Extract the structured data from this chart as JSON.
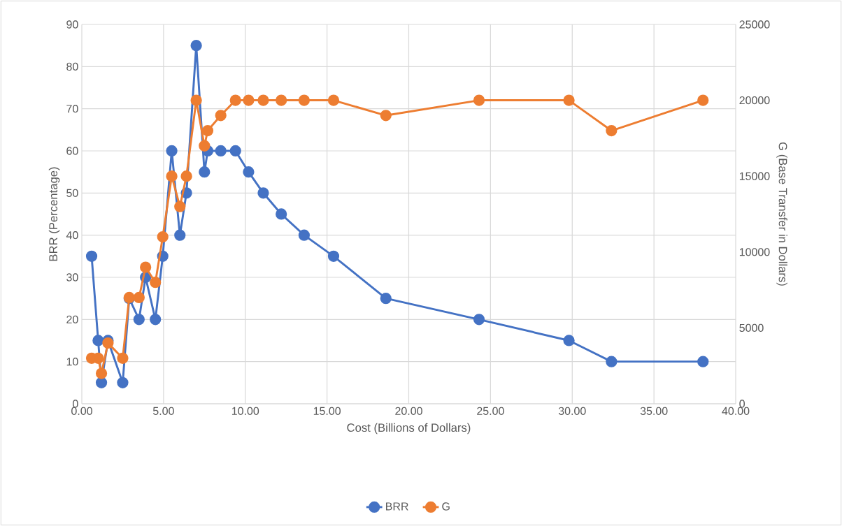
{
  "chart_data": {
    "type": "line",
    "xlabel": "Cost (Billions of Dollars)",
    "ylabel": "BRR (Percentage)",
    "y2label": "G (Base Transfer in Dollars)",
    "x": [
      0.6,
      1.0,
      1.2,
      1.6,
      2.5,
      2.9,
      3.5,
      3.9,
      4.5,
      4.95,
      5.5,
      6.0,
      6.4,
      7.0,
      7.5,
      7.7,
      8.5,
      9.4,
      10.2,
      11.1,
      12.2,
      13.6,
      15.4,
      18.6,
      24.3,
      29.8,
      32.4,
      38.0
    ],
    "series": [
      {
        "name": "BRR",
        "color": "#4472c4",
        "values": [
          35,
          15,
          5,
          15,
          5,
          25,
          20,
          30,
          20,
          35,
          60,
          40,
          50,
          85,
          55,
          60,
          60,
          60,
          55,
          50,
          45,
          40,
          35,
          25,
          20,
          15,
          10,
          10
        ]
      },
      {
        "name": "G",
        "color": "#ed7d31",
        "axis": "y2",
        "values": [
          3000,
          3000,
          2000,
          4000,
          3000,
          7000,
          7000,
          9000,
          8000,
          11000,
          15000,
          13000,
          15000,
          20000,
          17000,
          18000,
          19000,
          20000,
          20000,
          20000,
          20000,
          20000,
          20000,
          19000,
          20000,
          20000,
          18000,
          20000
        ]
      }
    ],
    "xlim": [
      0,
      40
    ],
    "xticks": [
      {
        "value": 0,
        "label": "0.00"
      },
      {
        "value": 5,
        "label": "5.00"
      },
      {
        "value": 10,
        "label": "10.00"
      },
      {
        "value": 15,
        "label": "15.00"
      },
      {
        "value": 20,
        "label": "20.00"
      },
      {
        "value": 25,
        "label": "25.00"
      },
      {
        "value": 30,
        "label": "30.00"
      },
      {
        "value": 35,
        "label": "35.00"
      },
      {
        "value": 40,
        "label": "40.00"
      }
    ],
    "ylim": [
      0,
      90
    ],
    "yticks": [
      0,
      10,
      20,
      30,
      40,
      50,
      60,
      70,
      80,
      90
    ],
    "y2lim": [
      0,
      25000
    ],
    "y2ticks": [
      0,
      5000,
      10000,
      15000,
      20000,
      25000
    ],
    "grid": true,
    "legend": "bottom",
    "marker": "circle",
    "line_style": "solid"
  }
}
